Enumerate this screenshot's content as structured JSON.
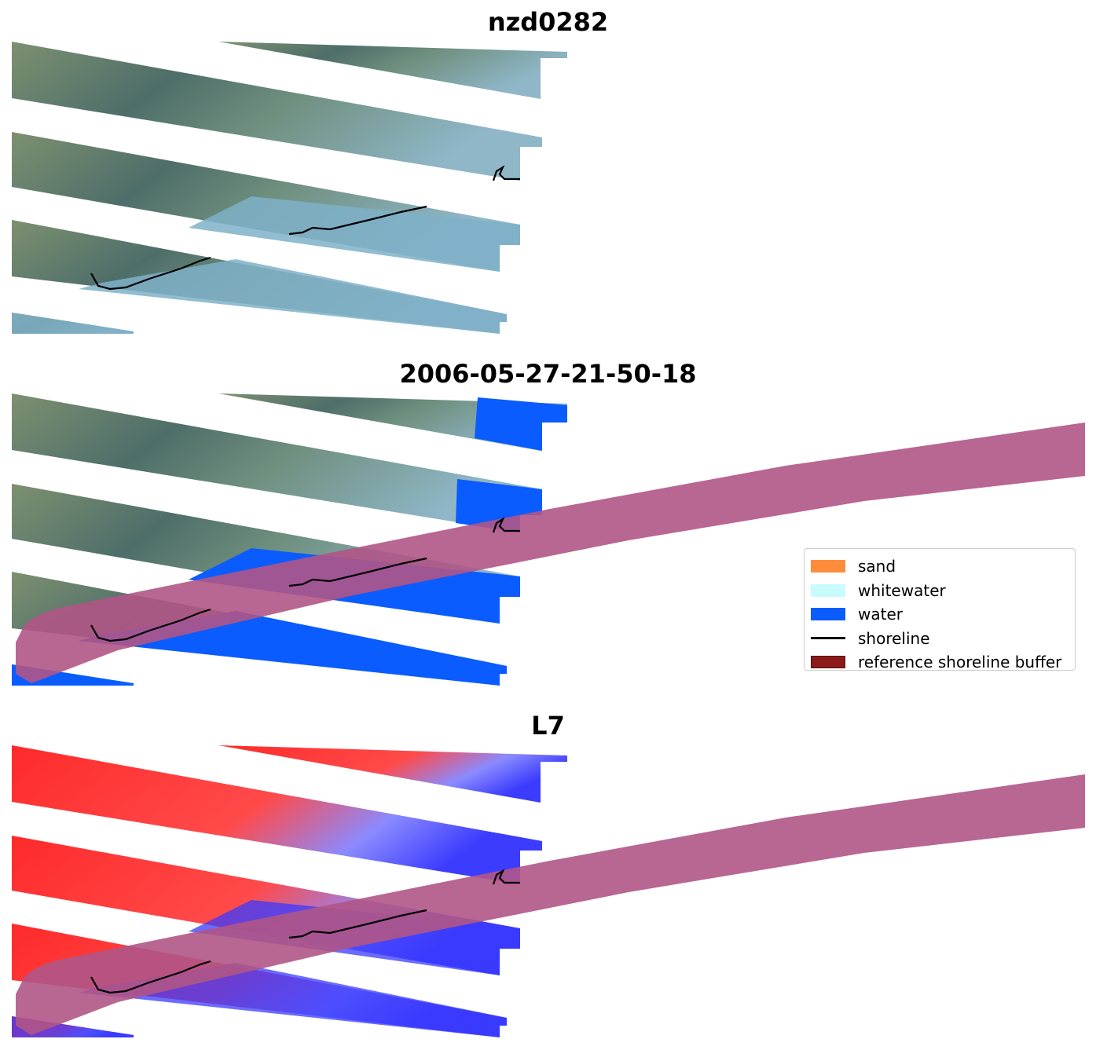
{
  "panels": [
    {
      "title": "nzd0282",
      "mode": "rgb"
    },
    {
      "title": "2006-05-27-21-50-18",
      "mode": "classified"
    },
    {
      "title": "L7",
      "mode": "index"
    }
  ],
  "legend": {
    "items": [
      {
        "label": "sand",
        "color": "#ff8c3a",
        "kind": "patch"
      },
      {
        "label": "whitewater",
        "color": "#c8fcfc",
        "kind": "patch"
      },
      {
        "label": "water",
        "color": "#0a5cff",
        "kind": "patch"
      },
      {
        "label": "shoreline",
        "color": "#000000",
        "kind": "line"
      },
      {
        "label": "reference shoreline buffer",
        "color": "#8b1a1a",
        "kind": "patch"
      }
    ]
  },
  "colors": {
    "buffer_overlay": "#b05586",
    "water": "#0a5cff",
    "land_rgb": "#6e8a7a",
    "sea_rgb": "#7fb0c8",
    "index_land": "#ff2020",
    "index_water": "#3a3aff"
  }
}
